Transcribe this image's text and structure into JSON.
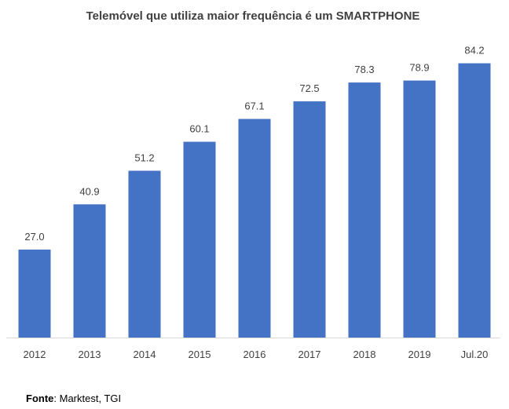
{
  "chart_data": {
    "type": "bar",
    "title": "Telemóvel que utiliza maior frequência é um SMARTPHONE",
    "categories": [
      "2012",
      "2013",
      "2014",
      "2015",
      "2016",
      "2017",
      "2018",
      "2019",
      "Jul.20"
    ],
    "values": [
      27.0,
      40.9,
      51.2,
      60.1,
      67.1,
      72.5,
      78.3,
      78.9,
      84.2
    ],
    "value_labels": [
      "27.0",
      "40.9",
      "51.2",
      "60.1",
      "67.1",
      "72.5",
      "78.3",
      "78.9",
      "84.2"
    ],
    "xlabel": "",
    "ylabel": "",
    "ylim": [
      0,
      100
    ],
    "grid": false,
    "legend": "none",
    "bar_color": "#4472C4"
  },
  "source": {
    "label": "Fonte",
    "text": ": Marktest, TGI"
  }
}
